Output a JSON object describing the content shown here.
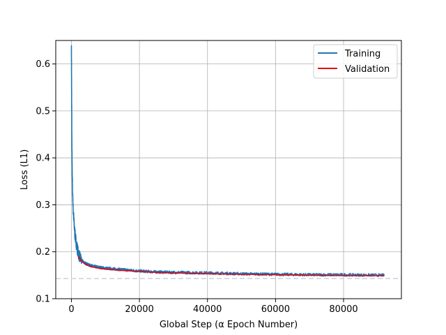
{
  "chart_data": {
    "type": "line",
    "title": "",
    "xlabel": "Global Step (α Epoch Number)",
    "ylabel": "Loss (L1)",
    "xlim": [
      -4600,
      97000
    ],
    "ylim": [
      0.1,
      0.65
    ],
    "xticks": [
      0,
      20000,
      40000,
      60000,
      80000
    ],
    "xtick_labels": [
      "0",
      "20000",
      "40000",
      "60000",
      "80000"
    ],
    "yticks": [
      0.1,
      0.2,
      0.3,
      0.4,
      0.5,
      0.6
    ],
    "ytick_labels": [
      "0.1",
      "0.2",
      "0.3",
      "0.4",
      "0.5",
      "0.6"
    ],
    "grid": true,
    "legend_position": "top-right",
    "reference_line": {
      "y": 0.143,
      "style": "dashed",
      "color": "#c8d0dc"
    },
    "series": [
      {
        "name": "Training",
        "color": "#1f77b4",
        "noisy": true,
        "x": [
          0,
          150,
          300,
          500,
          800,
          1000,
          1500,
          2000,
          2500,
          3000,
          4000,
          5000,
          6000,
          8000,
          10000,
          15000,
          20000,
          25000,
          30000,
          40000,
          50000,
          60000,
          70000,
          80000,
          92000
        ],
        "y": [
          0.63,
          0.42,
          0.34,
          0.29,
          0.26,
          0.24,
          0.215,
          0.198,
          0.188,
          0.182,
          0.176,
          0.172,
          0.17,
          0.167,
          0.165,
          0.162,
          0.159,
          0.157,
          0.156,
          0.155,
          0.153,
          0.152,
          0.151,
          0.151,
          0.15
        ]
      },
      {
        "name": "Validation",
        "color": "#e8000b",
        "noisy": false,
        "x": [
          2000,
          3000,
          4000,
          5000,
          6000,
          8000,
          10000,
          15000,
          20000,
          25000,
          30000,
          40000,
          50000,
          60000,
          70000,
          80000,
          92000
        ],
        "y": [
          0.19,
          0.18,
          0.174,
          0.171,
          0.168,
          0.165,
          0.163,
          0.16,
          0.158,
          0.156,
          0.155,
          0.153,
          0.152,
          0.151,
          0.15,
          0.149,
          0.149
        ]
      }
    ]
  }
}
